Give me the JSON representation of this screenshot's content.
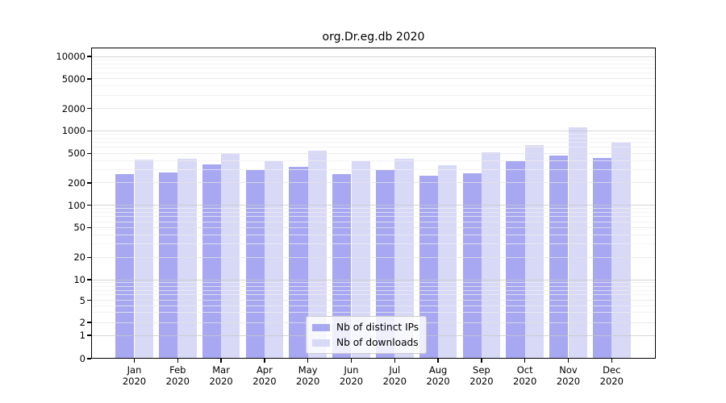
{
  "title": "org.Dr.eg.db 2020",
  "colors": {
    "ips_bar": "#a8a8f2",
    "downloads_bar": "#d8d8f7",
    "grid_major": "#c8c8c8",
    "grid_mid": "#e3e3e3",
    "grid_minor": "#efefef",
    "spine": "#000000"
  },
  "chart_data": {
    "type": "bar",
    "title": "org.Dr.eg.db 2020",
    "categories": [
      "Jan 2020",
      "Feb 2020",
      "Mar 2020",
      "Apr 2020",
      "May 2020",
      "Jun 2020",
      "Jul 2020",
      "Aug 2020",
      "Sep 2020",
      "Oct 2020",
      "Nov 2020",
      "Dec 2020"
    ],
    "series": [
      {
        "name": "Nb of distinct IPs",
        "color": "#a8a8f2",
        "values": [
          265,
          276,
          350,
          300,
          327,
          265,
          296,
          250,
          272,
          392,
          464,
          430
        ]
      },
      {
        "name": "Nb of downloads",
        "color": "#d8d8f7",
        "values": [
          415,
          418,
          487,
          392,
          540,
          392,
          426,
          344,
          516,
          650,
          1110,
          690
        ]
      }
    ],
    "yscale": "symlog",
    "ylabel": "",
    "xlabel": "",
    "yticks": [
      0,
      1,
      2,
      5,
      10,
      20,
      50,
      100,
      200,
      500,
      1000,
      2000,
      5000,
      10000
    ],
    "ylim": [
      0,
      13000
    ],
    "grid": true,
    "legend_position": "bottom-center"
  },
  "legend": {
    "items": [
      {
        "label": "Nb of distinct IPs"
      },
      {
        "label": "Nb of downloads"
      }
    ]
  }
}
